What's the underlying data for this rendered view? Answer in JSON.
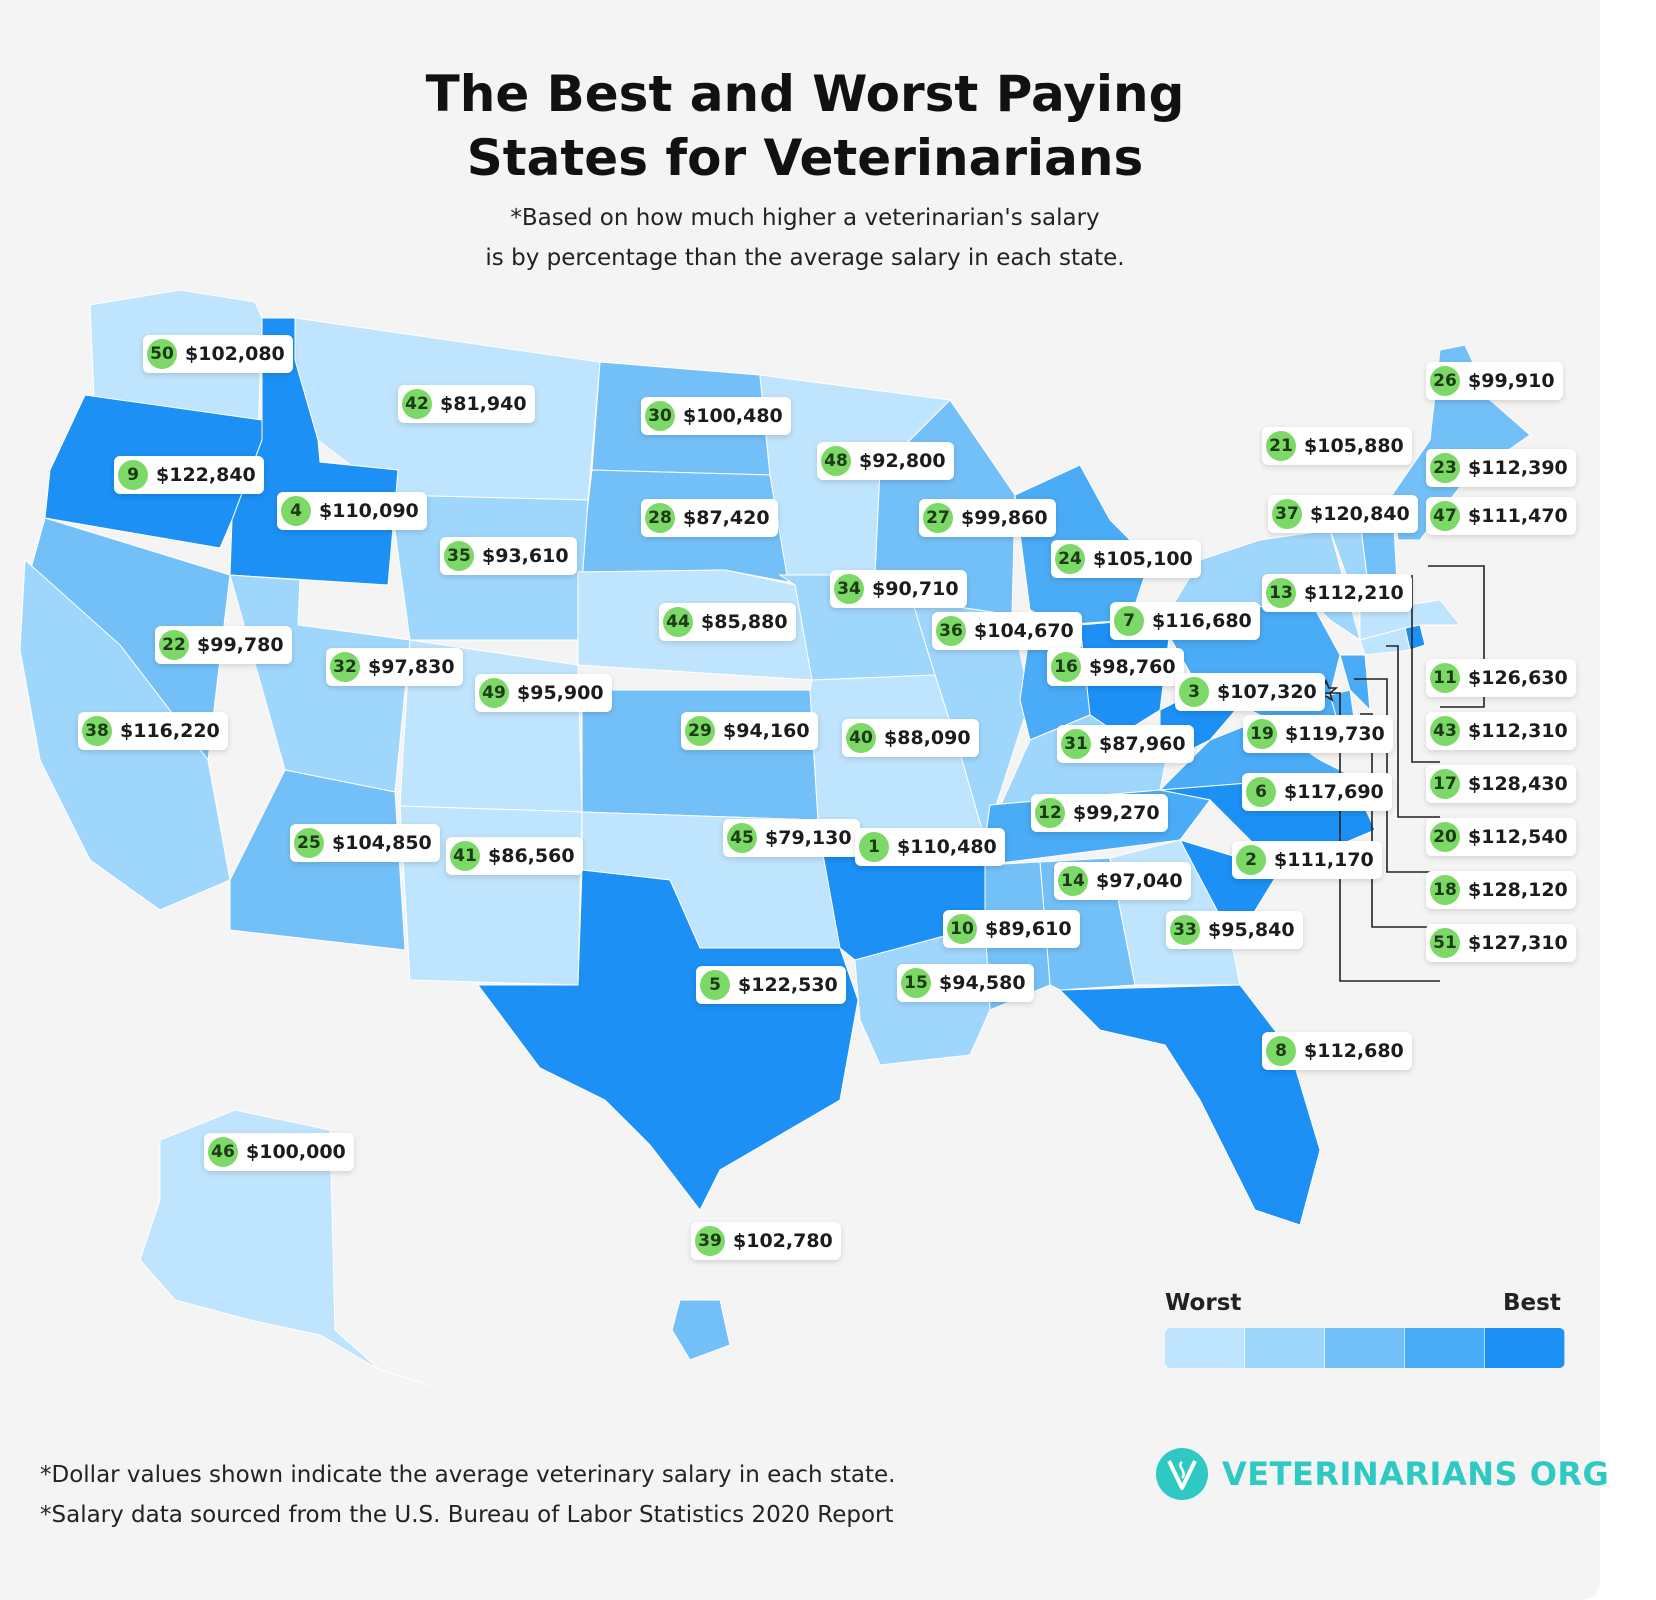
{
  "title_lines": [
    "The Best and Worst Paying",
    "States for Veterinarians"
  ],
  "subtitle_lines": [
    "*Based on how much higher a veterinarian's salary",
    "is by percentage than the average salary in each state."
  ],
  "legend": {
    "worst": "Worst",
    "best": "Best"
  },
  "colors": {
    "scale": [
      "#bfe4fd",
      "#9fd6fc",
      "#73c0f8",
      "#4aabf6",
      "#1c90f5"
    ],
    "rank_badge": "#7cd867",
    "brand": "#2ec9c3",
    "background": "#f4f4f4"
  },
  "footnotes": [
    "*Dollar values shown indicate the average veterinary salary in each state.",
    "*Salary data sourced from the U.S. Bureau of Labor Statistics 2020 Report"
  ],
  "logo": {
    "text": "VETERINARIANS ORG",
    "icon": "veterinarian-logo-icon"
  },
  "states": [
    {
      "id": "wa",
      "rank": "50",
      "salary": "$102,080",
      "tier": 0
    },
    {
      "id": "mt",
      "rank": "42",
      "salary": "$81,940",
      "tier": 0
    },
    {
      "id": "nd",
      "rank": "30",
      "salary": "$100,480",
      "tier": 2
    },
    {
      "id": "mn",
      "rank": "48",
      "salary": "$92,800",
      "tier": 0
    },
    {
      "id": "me",
      "rank": "26",
      "salary": "$99,910",
      "tier": 2
    },
    {
      "id": "vt",
      "rank": "21",
      "salary": "$105,880",
      "tier": 1
    },
    {
      "id": "nh",
      "rank": "23",
      "salary": "$112,390",
      "tier": 2
    },
    {
      "id": "or",
      "rank": "9",
      "salary": "$122,840",
      "tier": 4
    },
    {
      "id": "id",
      "rank": "4",
      "salary": "$110,090",
      "tier": 4
    },
    {
      "id": "sd",
      "rank": "28",
      "salary": "$87,420",
      "tier": 2
    },
    {
      "id": "wi",
      "rank": "27",
      "salary": "$99,860",
      "tier": 2
    },
    {
      "id": "ny",
      "rank": "37",
      "salary": "$120,840",
      "tier": 1
    },
    {
      "id": "ma",
      "rank": "47",
      "salary": "$111,470",
      "tier": 0
    },
    {
      "id": "wy",
      "rank": "35",
      "salary": "$93,610",
      "tier": 1
    },
    {
      "id": "mi",
      "rank": "24",
      "salary": "$105,100",
      "tier": 3
    },
    {
      "id": "ia",
      "rank": "34",
      "salary": "$90,710",
      "tier": 1
    },
    {
      "id": "pa",
      "rank": "13",
      "salary": "$112,210",
      "tier": 3
    },
    {
      "id": "ne",
      "rank": "44",
      "salary": "$85,880",
      "tier": 0
    },
    {
      "id": "il",
      "rank": "36",
      "salary": "$104,670",
      "tier": 1
    },
    {
      "id": "oh",
      "rank": "7",
      "salary": "$116,680",
      "tier": 4
    },
    {
      "id": "nv",
      "rank": "22",
      "salary": "$99,780",
      "tier": 2
    },
    {
      "id": "ut",
      "rank": "32",
      "salary": "$97,830",
      "tier": 1
    },
    {
      "id": "in",
      "rank": "16",
      "salary": "$98,760",
      "tier": 3
    },
    {
      "id": "ri",
      "rank": "11",
      "salary": "$126,630",
      "tier": 4
    },
    {
      "id": "co",
      "rank": "49",
      "salary": "$95,900",
      "tier": 0
    },
    {
      "id": "wv",
      "rank": "3",
      "salary": "$107,320",
      "tier": 4
    },
    {
      "id": "ca",
      "rank": "38",
      "salary": "$116,220",
      "tier": 1
    },
    {
      "id": "ks",
      "rank": "29",
      "salary": "$94,160",
      "tier": 2
    },
    {
      "id": "mo",
      "rank": "40",
      "salary": "$88,090",
      "tier": 0
    },
    {
      "id": "ky",
      "rank": "31",
      "salary": "$87,960",
      "tier": 1
    },
    {
      "id": "va",
      "rank": "19",
      "salary": "$119,730",
      "tier": 3
    },
    {
      "id": "ct",
      "rank": "43",
      "salary": "$112,310",
      "tier": 0
    },
    {
      "id": "nj",
      "rank": "17",
      "salary": "$128,430",
      "tier": 3
    },
    {
      "id": "nc",
      "rank": "6",
      "salary": "$117,690",
      "tier": 4
    },
    {
      "id": "tn",
      "rank": "12",
      "salary": "$99,270",
      "tier": 3
    },
    {
      "id": "de",
      "rank": "20",
      "salary": "$112,540",
      "tier": 3
    },
    {
      "id": "az",
      "rank": "25",
      "salary": "$104,850",
      "tier": 2
    },
    {
      "id": "nm",
      "rank": "41",
      "salary": "$86,560",
      "tier": 0
    },
    {
      "id": "ok",
      "rank": "45",
      "salary": "$79,130",
      "tier": 0
    },
    {
      "id": "ar",
      "rank": "1",
      "salary": "$110,480",
      "tier": 4
    },
    {
      "id": "sc",
      "rank": "2",
      "salary": "$111,170",
      "tier": 4
    },
    {
      "id": "al",
      "rank": "14",
      "salary": "$97,040",
      "tier": 2
    },
    {
      "id": "md",
      "rank": "18",
      "salary": "$128,120",
      "tier": 3
    },
    {
      "id": "ms",
      "rank": "10",
      "salary": "$89,610",
      "tier": 2
    },
    {
      "id": "ga",
      "rank": "33",
      "salary": "$95,840",
      "tier": 0
    },
    {
      "id": "dc",
      "rank": "51",
      "salary": "$127,310",
      "tier": 0
    },
    {
      "id": "tx",
      "rank": "5",
      "salary": "$122,530",
      "tier": 4
    },
    {
      "id": "la",
      "rank": "15",
      "salary": "$94,580",
      "tier": 1
    },
    {
      "id": "fl",
      "rank": "8",
      "salary": "$112,680",
      "tier": 4
    },
    {
      "id": "ak",
      "rank": "46",
      "salary": "$100,000",
      "tier": 0
    },
    {
      "id": "hi",
      "rank": "39",
      "salary": "$102,780",
      "tier": 2
    }
  ]
}
